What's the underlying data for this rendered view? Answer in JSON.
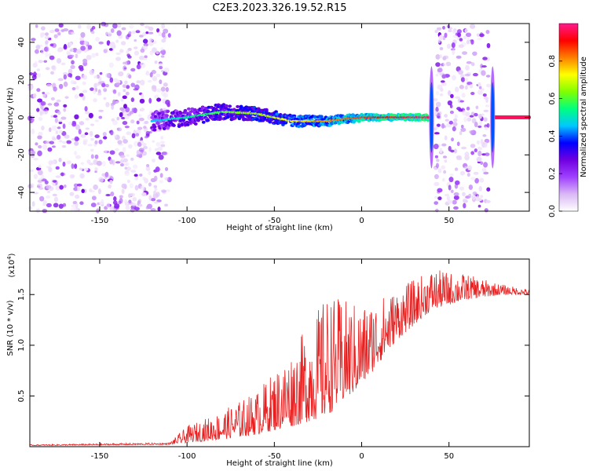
{
  "title": "C2E3.2023.326.19.52.R15",
  "chart_data": [
    {
      "type": "heatmap",
      "xlabel": "Height of straight line (km)",
      "ylabel": "Frequency (Hz)",
      "xlim": [
        -190,
        96
      ],
      "ylim": [
        -50,
        50
      ],
      "xticks": [
        "-150",
        "-100",
        "-50",
        "0",
        "50"
      ],
      "xtick_values": [
        -150,
        -100,
        -50,
        0,
        50
      ],
      "yticks": [
        "-40",
        "-20",
        "0",
        "20",
        "40"
      ],
      "ytick_values": [
        -40,
        -20,
        0,
        20,
        40
      ],
      "colorbar": {
        "label": "Normalized spectral amplitude",
        "range": [
          0,
          1
        ],
        "ticks": [
          "0.0",
          "0.2",
          "0.4",
          "0.6",
          "0.8"
        ],
        "tick_values": [
          0,
          0.2,
          0.4,
          0.6,
          0.8
        ],
        "colormap": [
          "#ffffff",
          "#d9b8f5",
          "#a040ff",
          "#7000e0",
          "#0000ff",
          "#00c8ff",
          "#00ff80",
          "#80ff00",
          "#ffff00",
          "#ff8000",
          "#ff0000",
          "#ff1a8c"
        ]
      },
      "noise_regions_km": [
        [
          -190,
          -110
        ],
        [
          42,
          73
        ]
      ],
      "signal_ridge": {
        "x": [
          -120,
          -100,
          -80,
          -60,
          -40,
          -20,
          0,
          20,
          38
        ],
        "frequency_hz": [
          -2,
          0,
          3,
          2,
          -2,
          -2,
          0,
          0,
          0
        ]
      },
      "vertical_features_km": [
        40,
        75
      ]
    },
    {
      "type": "line",
      "xlabel": "Height of straight line (km)",
      "ylabel": "SNR (10 * v/v)",
      "multiplier": "(x10",
      "multiplier_exp": "4",
      "xlim": [
        -190,
        96
      ],
      "ylim": [
        0,
        1.85
      ],
      "xticks": [
        "-150",
        "-100",
        "-50",
        "0",
        "50"
      ],
      "xtick_values": [
        -150,
        -100,
        -50,
        0,
        50
      ],
      "yticks": [
        "0.5",
        "1.0",
        "1.5"
      ],
      "ytick_values": [
        0.5,
        1.0,
        1.5
      ],
      "color": "#e82020",
      "envelope": {
        "x": [
          -190,
          -110,
          -100,
          -80,
          -60,
          -40,
          -20,
          0,
          20,
          40,
          60,
          80,
          96
        ],
        "base": [
          0.01,
          0.02,
          0.04,
          0.07,
          0.12,
          0.2,
          0.3,
          0.6,
          1.05,
          1.35,
          1.45,
          1.5,
          1.5
        ],
        "top": [
          0.02,
          0.04,
          0.2,
          0.35,
          0.55,
          0.95,
          1.5,
          1.4,
          1.55,
          1.75,
          1.7,
          1.6,
          1.55
        ]
      }
    }
  ]
}
